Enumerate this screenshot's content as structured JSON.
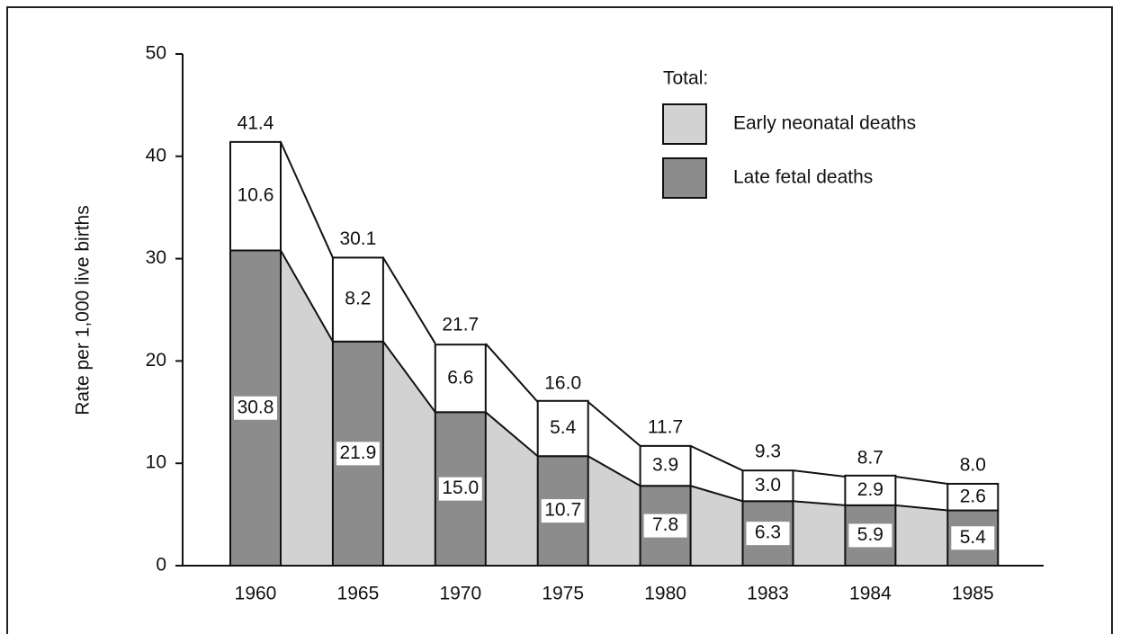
{
  "chart_data": {
    "type": "stacked-bar",
    "ylabel": "Rate per 1,000 live births",
    "legend_title": "Total:",
    "categories": [
      "1960",
      "1965",
      "1970",
      "1975",
      "1980",
      "1983",
      "1984",
      "1985"
    ],
    "series": [
      {
        "name": "Late fetal deaths",
        "color": "#8c8c8c",
        "values": [
          30.8,
          21.9,
          15.0,
          10.7,
          7.8,
          6.3,
          5.9,
          5.4
        ],
        "value_labels": [
          "30.8",
          "21.9",
          "15.0",
          "10.7",
          "7.8",
          "6.3",
          "5.9",
          "5.4"
        ]
      },
      {
        "name": "Early neonatal deaths",
        "color": "#d2d2d2",
        "values": [
          10.6,
          8.2,
          6.6,
          5.4,
          3.9,
          3.0,
          2.9,
          2.6
        ],
        "value_labels": [
          "10.6",
          "8.2",
          "6.6",
          "5.4",
          "3.9",
          "3.0",
          "2.9",
          "2.6"
        ]
      }
    ],
    "totals": {
      "values": [
        41.4,
        30.1,
        21.7,
        16.0,
        11.7,
        9.3,
        8.7,
        8.0
      ],
      "value_labels": [
        "41.4",
        "30.1",
        "21.7",
        "16.0",
        "11.7",
        "9.3",
        "8.7",
        "8.0"
      ]
    },
    "ylim": [
      0,
      50
    ],
    "yticks": [
      0,
      10,
      20,
      30,
      40,
      50
    ]
  }
}
